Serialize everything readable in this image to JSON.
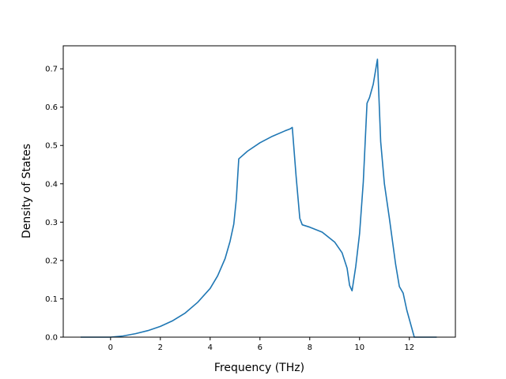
{
  "chart_data": {
    "type": "line",
    "title": "",
    "xlabel": "Frequency (THz)",
    "ylabel": "Density of States",
    "xlim": [
      -1.9,
      13.85
    ],
    "ylim": [
      0.0,
      0.76
    ],
    "xticks": [
      0,
      2,
      4,
      6,
      8,
      10,
      12
    ],
    "yticks": [
      0.0,
      0.1,
      0.2,
      0.3,
      0.4,
      0.5,
      0.6,
      0.7
    ],
    "xtick_labels": [
      "0",
      "2",
      "4",
      "6",
      "8",
      "10",
      "12"
    ],
    "ytick_labels": [
      "0.0",
      "0.1",
      "0.2",
      "0.3",
      "0.4",
      "0.5",
      "0.6",
      "0.7"
    ],
    "grid": false,
    "legend": "none",
    "line_color": "#1f77b4",
    "series": [
      {
        "x": [
          -1.2,
          -0.5,
          0.0,
          0.5,
          1.0,
          1.5,
          2.0,
          2.5,
          3.0,
          3.5,
          4.0,
          4.3,
          4.6,
          4.8,
          4.95,
          5.05,
          5.15,
          5.5,
          6.0,
          6.5,
          7.0,
          7.2,
          7.3,
          7.45,
          7.6,
          7.7,
          8.0,
          8.5,
          9.0,
          9.3,
          9.5,
          9.6,
          9.7,
          9.85,
          10.0,
          10.15,
          10.3,
          10.4,
          10.55,
          10.72,
          10.85,
          11.0,
          11.2,
          11.45,
          11.6,
          11.75,
          11.9,
          12.2,
          13.1
        ],
        "y": [
          0.0,
          0.0,
          0.0,
          0.003,
          0.009,
          0.017,
          0.028,
          0.043,
          0.063,
          0.091,
          0.127,
          0.16,
          0.205,
          0.25,
          0.295,
          0.36,
          0.465,
          0.485,
          0.507,
          0.524,
          0.538,
          0.543,
          0.547,
          0.42,
          0.31,
          0.293,
          0.287,
          0.274,
          0.248,
          0.22,
          0.18,
          0.135,
          0.121,
          0.185,
          0.27,
          0.405,
          0.61,
          0.625,
          0.66,
          0.725,
          0.51,
          0.4,
          0.31,
          0.19,
          0.132,
          0.115,
          0.07,
          0.0,
          0.0
        ]
      }
    ]
  }
}
